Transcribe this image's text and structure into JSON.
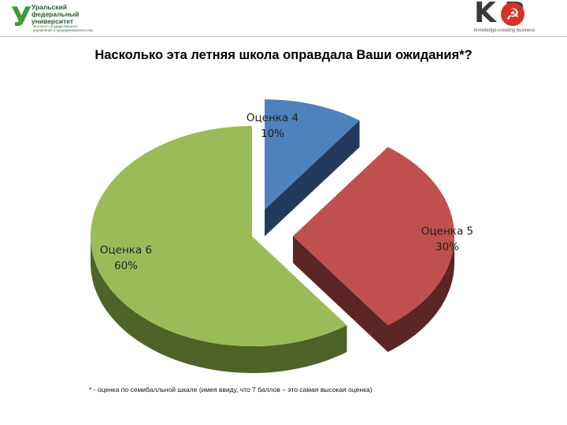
{
  "header": {
    "university": {
      "name": "Уральский\nфедеральный\nуниверситет",
      "subtitle": "Институт государственного\nуправления и предпринимательства"
    },
    "kcb": {
      "letters": "K  B",
      "tagline": "knowledge-creating business"
    }
  },
  "chart_data": {
    "type": "pie",
    "title": "Насколько эта летняя школа оправдала Ваши ожидания*?",
    "style": "3d-exploded",
    "slices": [
      {
        "label": "Оценка 4",
        "value": 10,
        "value_label": "10%",
        "color": "#4f81bd",
        "side_color": "#223a5e"
      },
      {
        "label": "Оценка 5",
        "value": 30,
        "value_label": "30%",
        "color": "#c0504d",
        "side_color": "#5c2526"
      },
      {
        "label": "Оценка 6",
        "value": 60,
        "value_label": "60%",
        "color": "#9bbb59",
        "side_color": "#4f6228"
      }
    ],
    "footnote": "* - оценка по семибалльной  шкале (имея ввиду, что 7 баллов – это самая высокая оценка)"
  }
}
